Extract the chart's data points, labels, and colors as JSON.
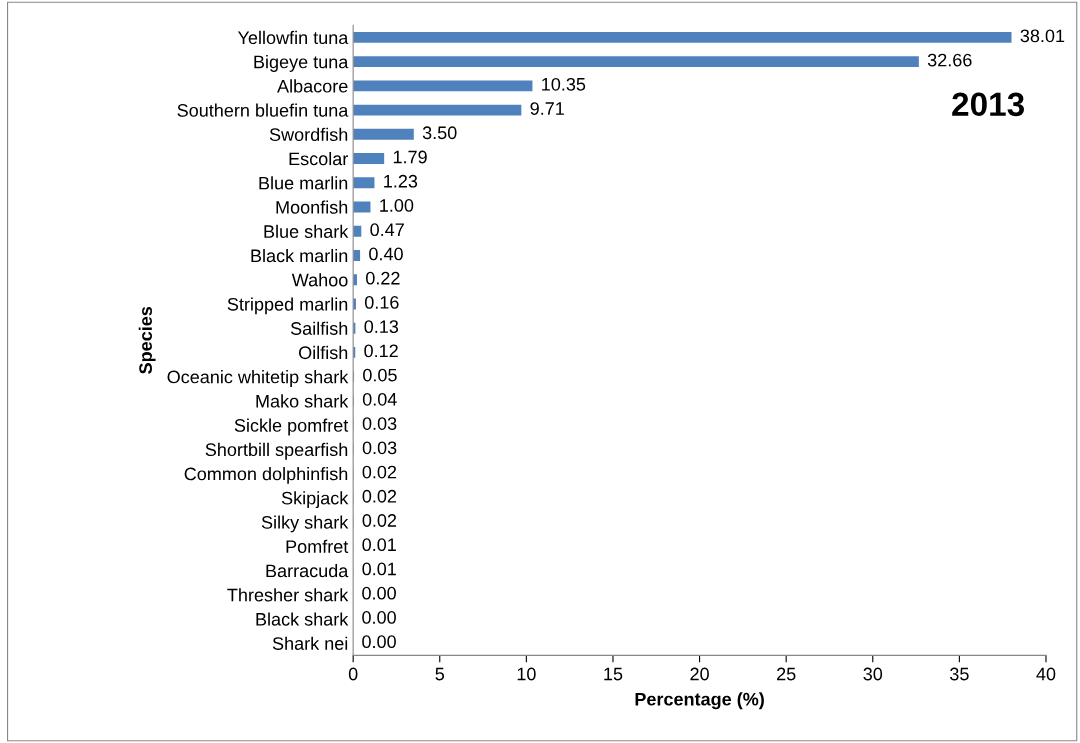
{
  "chart_data": {
    "type": "bar",
    "orientation": "horizontal",
    "xlabel": "Percentage (%)",
    "ylabel": "Species",
    "annotations": [
      "2013"
    ],
    "categories": [
      "Yellowfin tuna",
      "Bigeye tuna",
      "Albacore",
      "Southern bluefin tuna",
      "Swordfish",
      "Escolar",
      "Blue marlin",
      "Moonfish",
      "Blue shark",
      "Black marlin",
      "Wahoo",
      "Stripped marlin",
      "Sailfish",
      "Oilfish",
      "Oceanic whitetip shark",
      "Mako shark",
      "Sickle pomfret",
      "Shortbill spearfish",
      "Common dolphinfish",
      "Skipjack",
      "Silky shark",
      "Pomfret",
      "Barracuda",
      "Thresher shark",
      "Black shark",
      "Shark nei"
    ],
    "values": [
      38.01,
      32.66,
      10.35,
      9.71,
      3.5,
      1.79,
      1.23,
      1.0,
      0.47,
      0.4,
      0.22,
      0.16,
      0.13,
      0.12,
      0.05,
      0.04,
      0.03,
      0.03,
      0.02,
      0.02,
      0.02,
      0.01,
      0.01,
      0.0,
      0.0,
      0.0
    ],
    "value_labels": [
      "38.01",
      "32.66",
      "10.35",
      "9.71",
      "3.50",
      "1.79",
      "1.23",
      "1.00",
      "0.47",
      "0.40",
      "0.22",
      "0.16",
      "0.13",
      "0.12",
      "0.05",
      "0.04",
      "0.03",
      "0.03",
      "0.02",
      "0.02",
      "0.02",
      "0.01",
      "0.01",
      "0.00",
      "0.00",
      "0.00"
    ],
    "color": "#4f81bd",
    "xlim": [
      0,
      40
    ],
    "xticks": [
      0,
      5,
      10,
      15,
      20,
      25,
      30,
      35,
      40
    ],
    "grid": false,
    "legend": false
  }
}
